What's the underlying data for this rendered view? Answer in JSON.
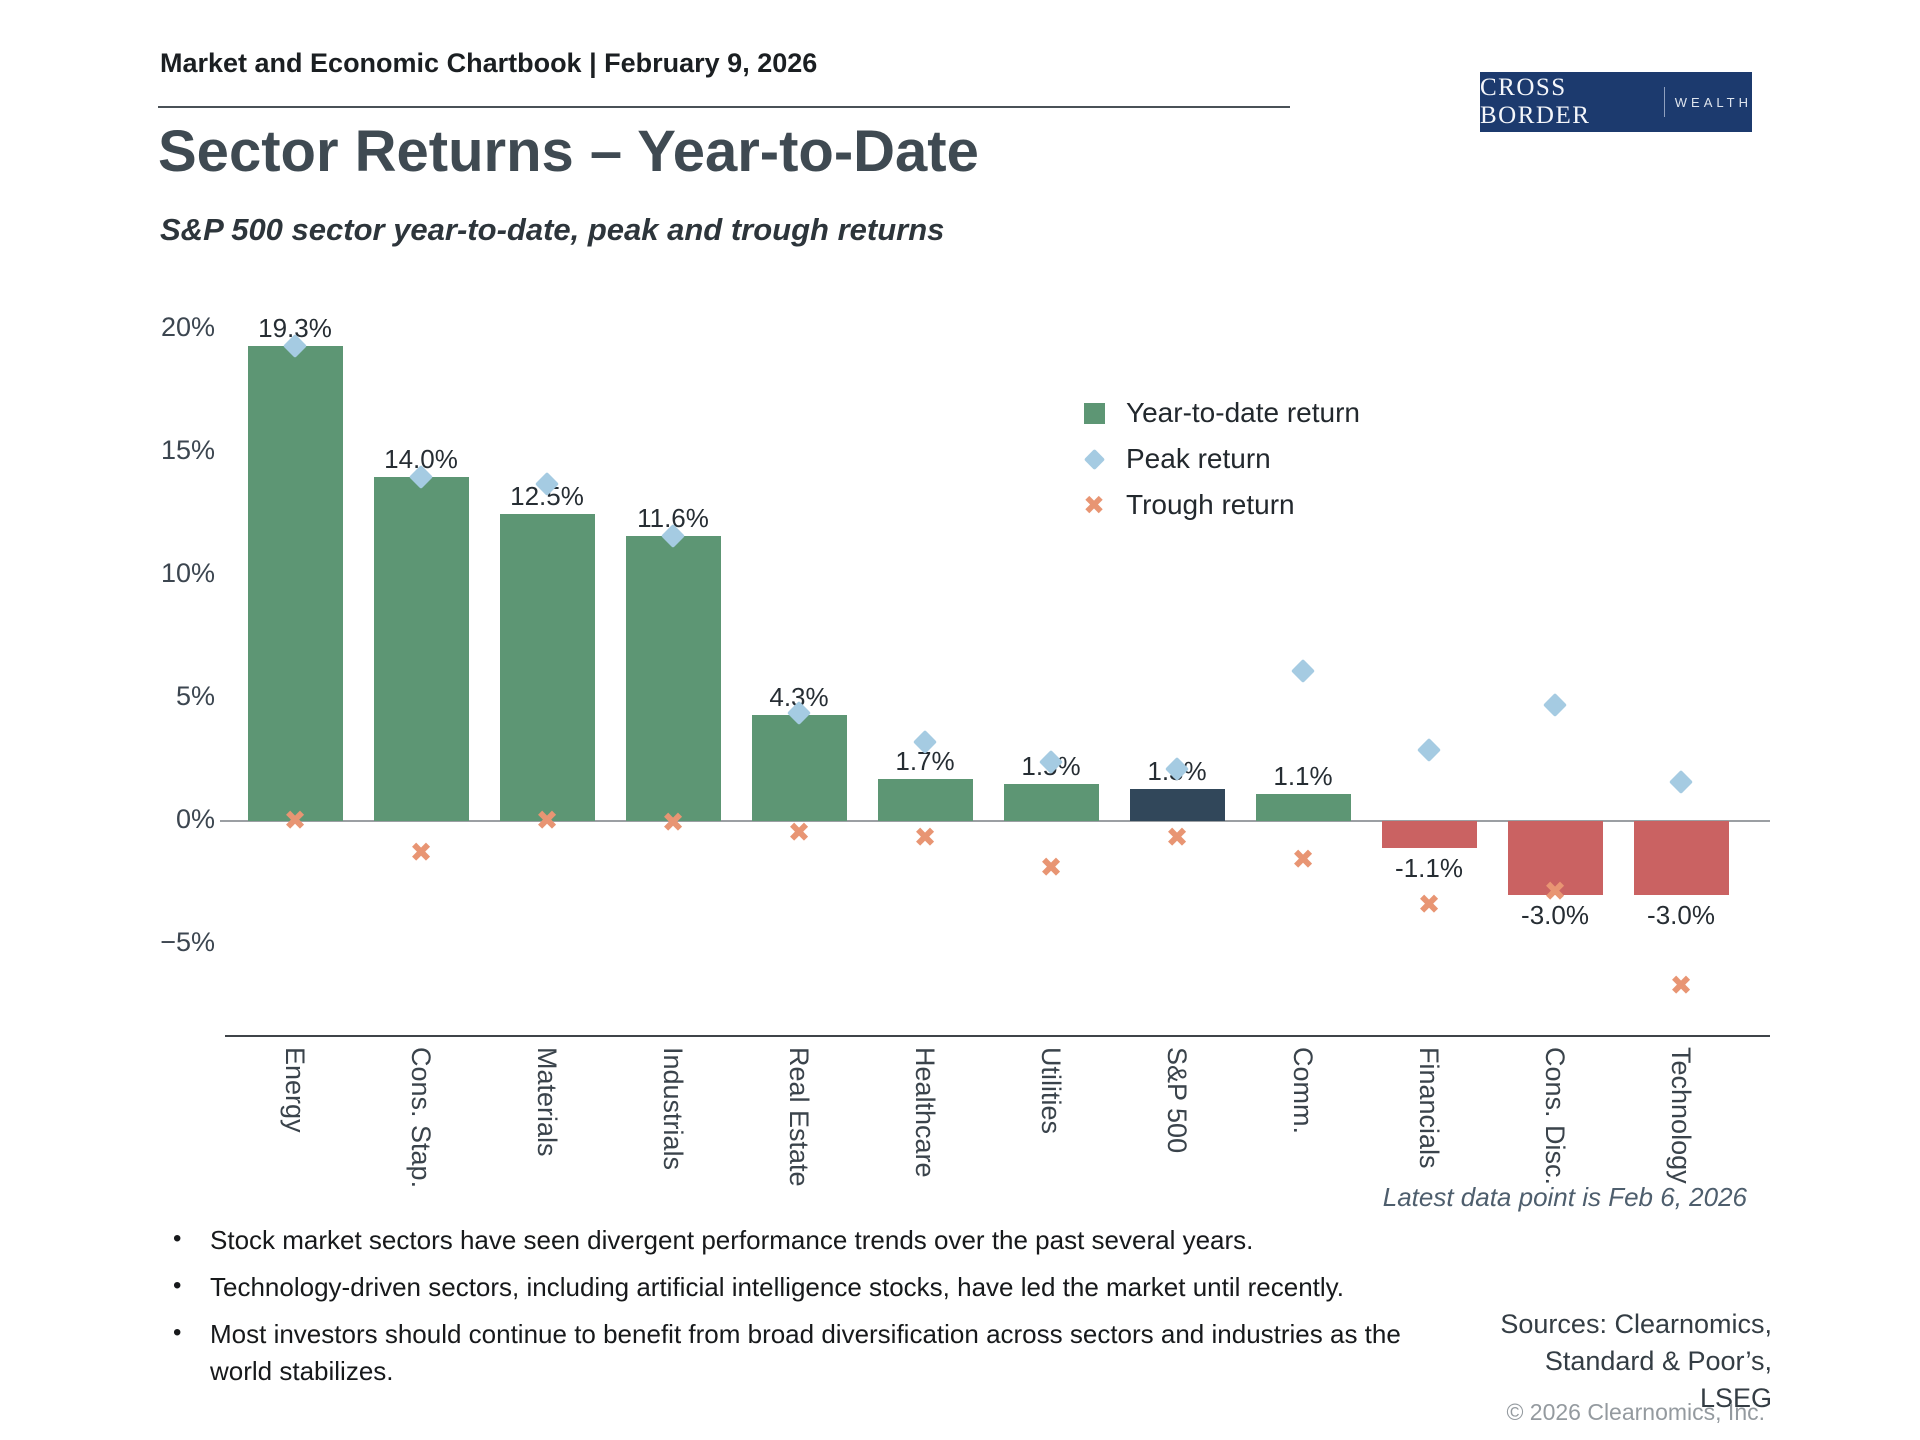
{
  "header": {
    "title": "Market and Economic Chartbook | February 9, 2026"
  },
  "logo": {
    "primary": "CROSS BORDER",
    "secondary": "WEALTH"
  },
  "page_title": "Sector Returns – Year-to-Date",
  "subtitle": "S&P 500 sector year-to-date, peak and trough returns",
  "chart_data": {
    "type": "bar",
    "categories": [
      "Energy",
      "Cons. Stap.",
      "Materials",
      "Industrials",
      "Real Estate",
      "Healthcare",
      "Utilities",
      "S&P 500",
      "Comm.",
      "Financials",
      "Cons. Disc.",
      "Technology"
    ],
    "series": [
      {
        "name": "Year-to-date return",
        "type": "bar",
        "values": [
          19.3,
          14.0,
          12.5,
          11.6,
          4.3,
          1.7,
          1.5,
          1.3,
          1.1,
          -1.1,
          -3.0,
          -3.0
        ],
        "labels": [
          "19.3%",
          "14.0%",
          "12.5%",
          "11.6%",
          "4.3%",
          "1.7%",
          "1.5%",
          "1.3%",
          "1.1%",
          "-1.1%",
          "-3.0%",
          "-3.0%"
        ]
      },
      {
        "name": "Peak return",
        "type": "scatter",
        "marker": "diamond",
        "values": [
          19.3,
          14.0,
          13.7,
          11.6,
          4.4,
          3.2,
          2.4,
          2.1,
          6.1,
          2.9,
          4.7,
          1.6
        ]
      },
      {
        "name": "Trough return",
        "type": "scatter",
        "marker": "x",
        "values": [
          0.0,
          -1.3,
          0.0,
          -0.1,
          -0.5,
          -0.7,
          -1.9,
          -0.7,
          -1.6,
          -3.4,
          -2.9,
          -6.7
        ]
      }
    ],
    "highlight_category": "S&P 500",
    "ylim": [
      -8.7,
      21.2
    ],
    "yticks": [
      20,
      15,
      10,
      5,
      0,
      -5
    ],
    "yticklabels": [
      "20%",
      "15%",
      "10%",
      "5%",
      "0%",
      "−5%"
    ],
    "grid": false,
    "legend_position": "upper right"
  },
  "annotations": {
    "latest_data": "Latest data point is Feb 6, 2026"
  },
  "bullets": [
    "Stock market sectors have seen divergent performance trends over the past several years.",
    "Technology-driven sectors, including artificial intelligence stocks, have led the market until recently.",
    "Most investors should continue to benefit from broad diversification across sectors and industries as the world stabilizes."
  ],
  "sources": {
    "lines": [
      "Sources: Clearnomics,",
      "Standard & Poor’s,",
      "LSEG"
    ],
    "copyright": "© 2026 Clearnomics, Inc."
  },
  "colors": {
    "bar_positive": "#5d9674",
    "bar_negative": "#ca6262",
    "bar_benchmark": "#31475a",
    "peak_marker": "#a5cbe2",
    "trough_marker": "#e89573",
    "logo_bg": "#1c3a6e"
  }
}
